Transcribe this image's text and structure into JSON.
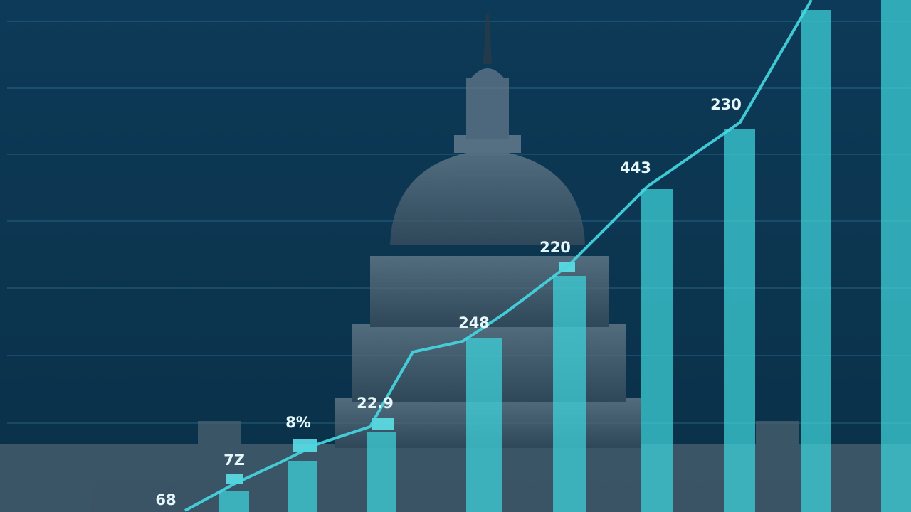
{
  "labels": [
    "68",
    "7Z",
    "8%",
    "22.9",
    "248",
    "220",
    "443",
    "230"
  ]
}
